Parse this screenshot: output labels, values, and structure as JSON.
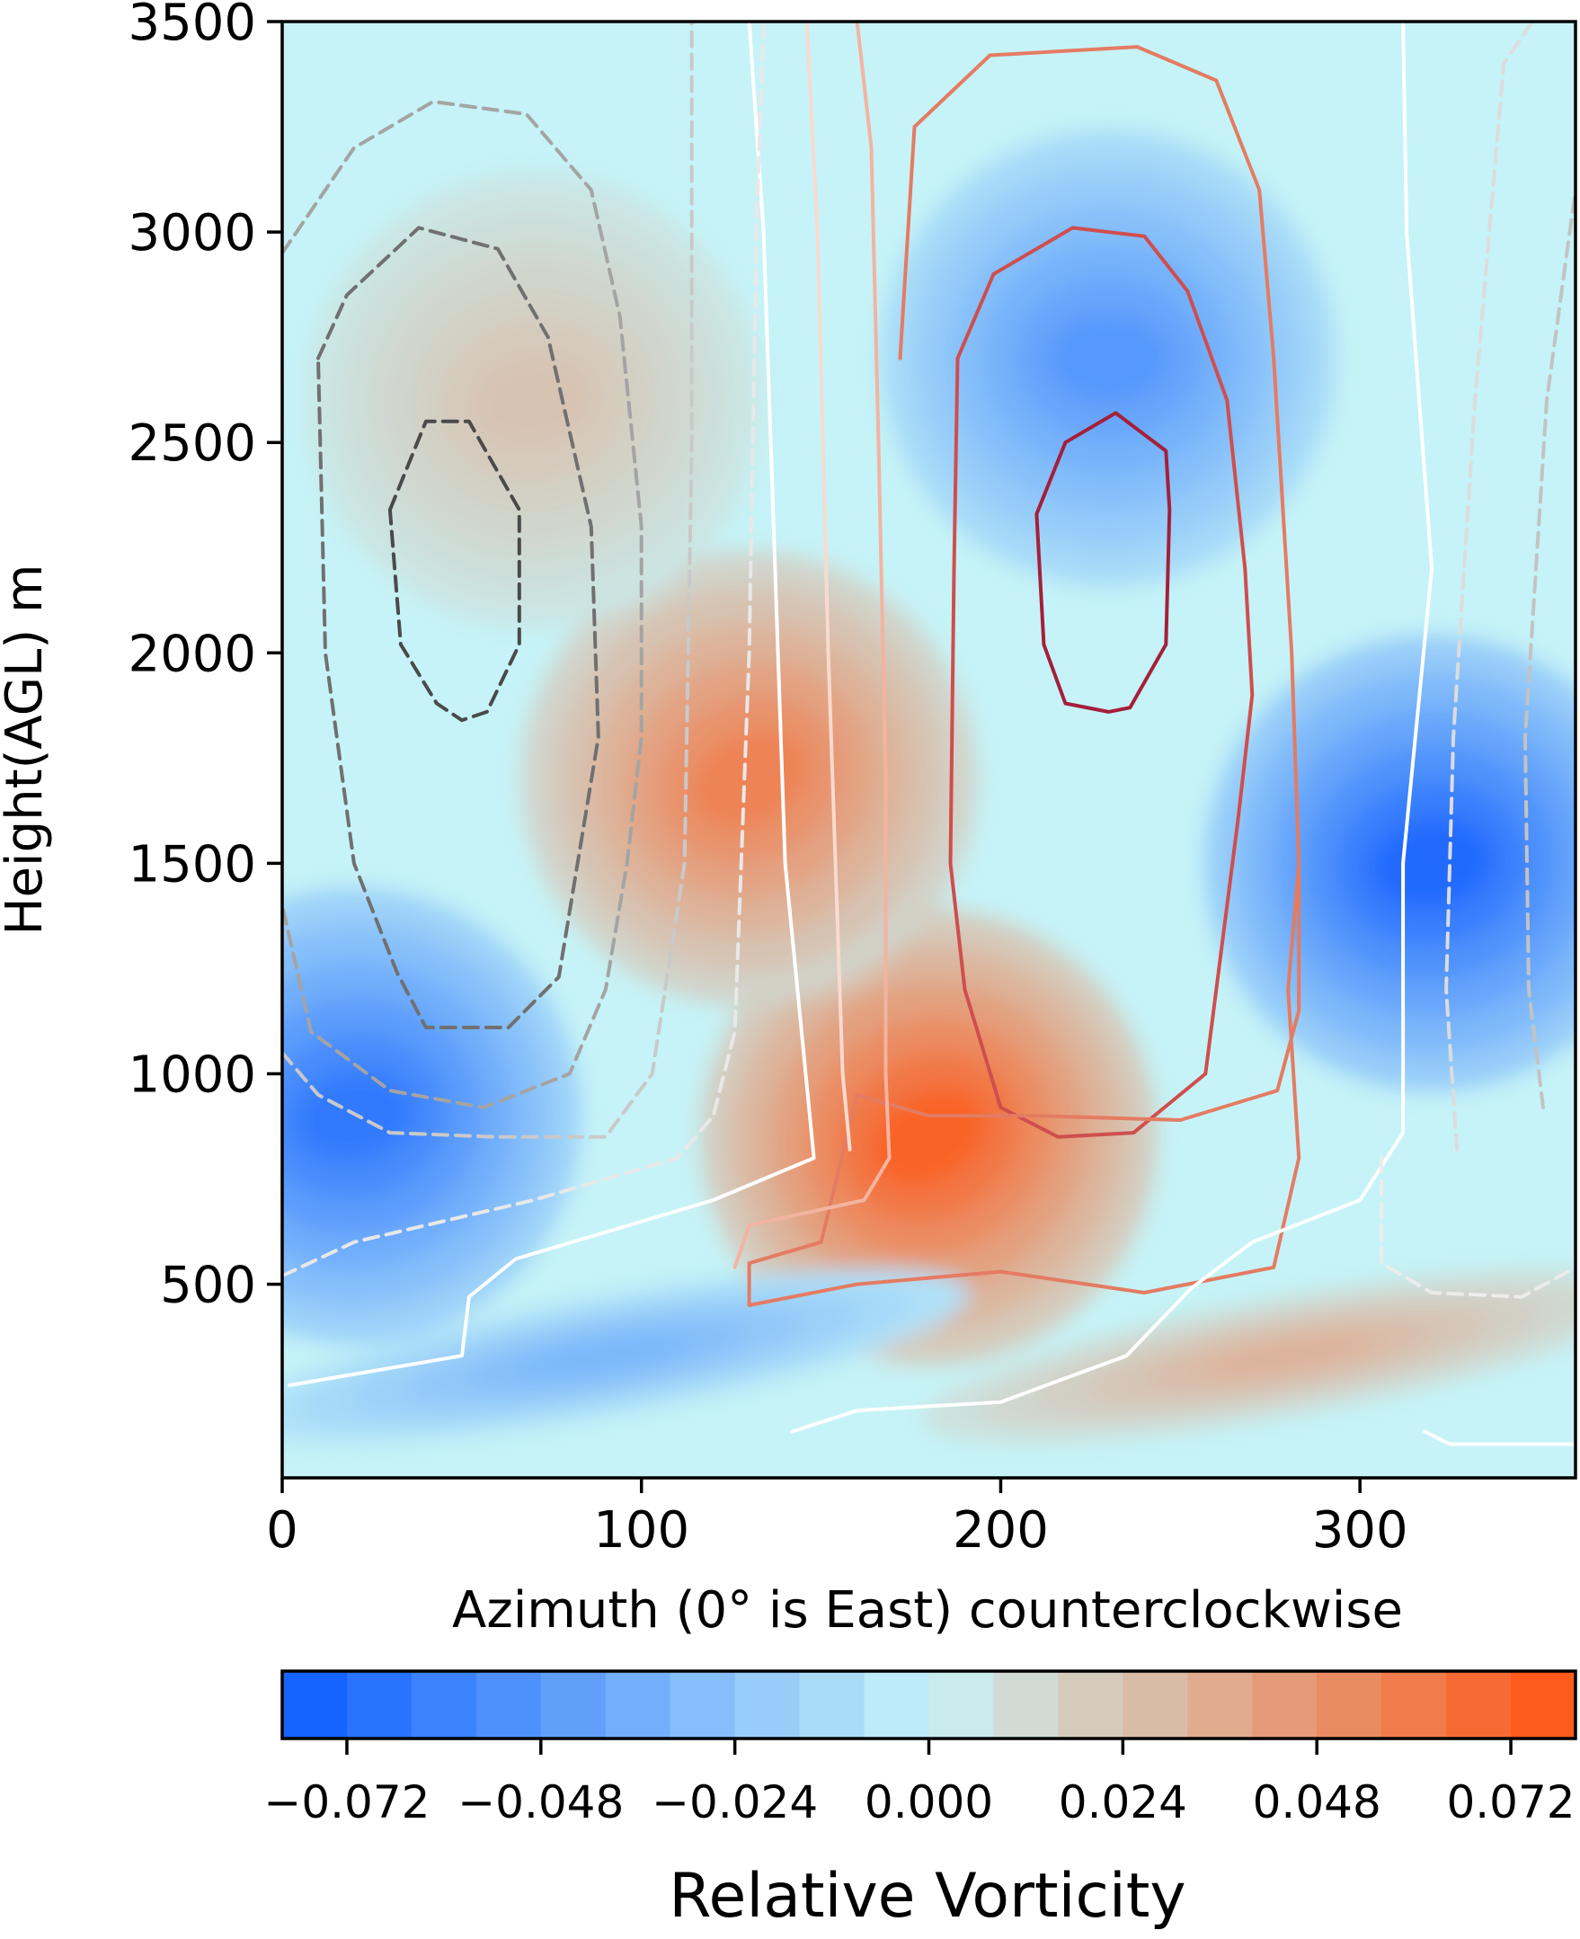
{
  "chart_data": {
    "type": "heatmap",
    "subtype": "filled contour with overlaid line contours",
    "xlabel": "Azimuth (0° is East) counterclockwise",
    "ylabel": "Height(AGL) m",
    "xlim": [
      0,
      360
    ],
    "ylim": [
      40,
      3500
    ],
    "xticks": [
      0,
      100,
      200,
      300
    ],
    "yticks": [
      500,
      1000,
      1500,
      2000,
      2500,
      3000,
      3500
    ],
    "grid": false,
    "colorbar": {
      "label": "Relative Vorticity",
      "orientation": "horizontal",
      "location": "bottom",
      "range": [
        -0.08,
        0.08
      ],
      "ticks": [
        -0.072,
        -0.048,
        -0.024,
        0.0,
        0.024,
        0.048,
        0.072
      ],
      "tick_labels": [
        "−0.072",
        "−0.048",
        "−0.024",
        "0.000",
        "0.024",
        "0.048",
        "0.072"
      ],
      "n_levels": 20,
      "colors": {
        "negative_end": "#0d5cff",
        "zero": "#c6f3f7",
        "positive_end": "#ff5310"
      }
    },
    "vorticity_features": [
      {
        "label": "positive maximum (tilted band)",
        "azimuth_deg": 180,
        "height_m": 850,
        "value": 0.072
      },
      {
        "label": "positive band, mid level",
        "azimuth_deg": 130,
        "height_m": 1700,
        "value": 0.056
      },
      {
        "label": "positive band, upper level",
        "azimuth_deg": 70,
        "height_m": 2600,
        "value": 0.024
      },
      {
        "label": "negative minimum, right",
        "azimuth_deg": 320,
        "height_m": 1500,
        "value": -0.072
      },
      {
        "label": "negative minimum, left",
        "azimuth_deg": 20,
        "height_m": 900,
        "value": -0.064
      },
      {
        "label": "negative region, upper middle",
        "azimuth_deg": 230,
        "height_m": 2700,
        "value": -0.048
      },
      {
        "label": "weak negative, low level",
        "azimuth_deg": 90,
        "height_m": 330,
        "value": -0.032
      },
      {
        "label": "weak positive, low level",
        "azimuth_deg": 280,
        "height_m": 330,
        "value": 0.032
      }
    ],
    "contour_series": [
      {
        "style": "solid",
        "color": "#a51f3a",
        "points": [
          [
            210,
            2330
          ],
          [
            218,
            2500
          ],
          [
            232,
            2570
          ],
          [
            246,
            2480
          ],
          [
            247,
            2340
          ],
          [
            246,
            2020
          ],
          [
            236,
            1870
          ],
          [
            230,
            1860
          ],
          [
            218,
            1880
          ],
          [
            212,
            2020
          ],
          [
            210,
            2330
          ]
        ]
      },
      {
        "style": "solid",
        "color": "#cf4e4e",
        "points": [
          [
            188,
            2700
          ],
          [
            198,
            2900
          ],
          [
            220,
            3010
          ],
          [
            240,
            2990
          ],
          [
            252,
            2860
          ],
          [
            263,
            2600
          ],
          [
            268,
            2200
          ],
          [
            270,
            1900
          ],
          [
            266,
            1600
          ],
          [
            257,
            1000
          ],
          [
            237,
            860
          ],
          [
            216,
            850
          ],
          [
            200,
            920
          ],
          [
            190,
            1200
          ],
          [
            186,
            1500
          ],
          [
            187,
            2200
          ],
          [
            188,
            2700
          ]
        ]
      },
      {
        "style": "solid",
        "color": "#e47b62",
        "points": [
          [
            172,
            2700
          ],
          [
            176,
            3250
          ],
          [
            197,
            3420
          ],
          [
            238,
            3440
          ],
          [
            260,
            3360
          ],
          [
            272,
            3100
          ],
          [
            276,
            2700
          ],
          [
            281,
            2000
          ],
          [
            283,
            1500
          ],
          [
            283,
            1150
          ],
          [
            277,
            960
          ],
          [
            250,
            890
          ],
          [
            210,
            900
          ],
          [
            180,
            900
          ],
          [
            160,
            950
          ],
          [
            150,
            600
          ],
          [
            130,
            550
          ],
          [
            130,
            450
          ],
          [
            160,
            500
          ],
          [
            200,
            530
          ],
          [
            240,
            480
          ],
          [
            276,
            540
          ],
          [
            283,
            800
          ],
          [
            280,
            1200
          ],
          [
            283,
            1500
          ]
        ]
      },
      {
        "style": "solid",
        "color": "#f2b4a0",
        "points": [
          [
            160,
            3500
          ],
          [
            164,
            3200
          ],
          [
            166,
            2500
          ],
          [
            168,
            1700
          ],
          [
            168,
            1000
          ],
          [
            169,
            800
          ],
          [
            162,
            700
          ],
          [
            130,
            640
          ],
          [
            126,
            540
          ]
        ]
      },
      {
        "style": "solid",
        "color": "#f9dad0",
        "points": [
          [
            146,
            3500
          ],
          [
            149,
            3000
          ],
          [
            152,
            2000
          ],
          [
            156,
            1000
          ],
          [
            158,
            820
          ]
        ]
      },
      {
        "style": "solid",
        "color": "#ffffff",
        "points": [
          [
            130,
            3500
          ],
          [
            134,
            3000
          ],
          [
            138,
            2000
          ],
          [
            140,
            1500
          ],
          [
            148,
            800
          ],
          [
            120,
            700
          ],
          [
            65,
            560
          ],
          [
            52,
            470
          ],
          [
            50,
            330
          ],
          [
            2,
            260
          ]
        ]
      },
      {
        "style": "solid",
        "color": "#ffffff",
        "points": [
          [
            142,
            150
          ],
          [
            160,
            200
          ],
          [
            200,
            220
          ],
          [
            235,
            330
          ],
          [
            253,
            490
          ],
          [
            270,
            600
          ],
          [
            300,
            700
          ],
          [
            312,
            860
          ],
          [
            312,
            1500
          ],
          [
            320,
            2200
          ],
          [
            313,
            3000
          ],
          [
            312,
            3500
          ]
        ]
      },
      {
        "style": "solid",
        "color": "#ffffff",
        "points": [
          [
            318,
            150
          ],
          [
            325,
            120
          ],
          [
            360,
            120
          ]
        ]
      },
      {
        "style": "dashed",
        "color": "#4a4a4a",
        "points": [
          [
            30,
            2340
          ],
          [
            40,
            2550
          ],
          [
            52,
            2550
          ],
          [
            66,
            2340
          ],
          [
            66,
            2020
          ],
          [
            57,
            1860
          ],
          [
            50,
            1840
          ],
          [
            43,
            1880
          ],
          [
            33,
            2020
          ],
          [
            30,
            2340
          ]
        ]
      },
      {
        "style": "dashed",
        "color": "#707070",
        "points": [
          [
            10,
            2700
          ],
          [
            18,
            2850
          ],
          [
            38,
            3010
          ],
          [
            60,
            2960
          ],
          [
            74,
            2750
          ],
          [
            86,
            2300
          ],
          [
            88,
            1800
          ],
          [
            77,
            1230
          ],
          [
            63,
            1110
          ],
          [
            40,
            1110
          ],
          [
            32,
            1240
          ],
          [
            20,
            1500
          ],
          [
            12,
            2000
          ],
          [
            10,
            2700
          ]
        ]
      },
      {
        "style": "dashed",
        "color": "#a4a4a4",
        "points": [
          [
            0,
            2950
          ],
          [
            20,
            3200
          ],
          [
            42,
            3310
          ],
          [
            68,
            3280
          ],
          [
            86,
            3100
          ],
          [
            94,
            2800
          ],
          [
            100,
            2300
          ],
          [
            100,
            1800
          ],
          [
            96,
            1500
          ],
          [
            90,
            1200
          ],
          [
            80,
            1000
          ],
          [
            56,
            920
          ],
          [
            30,
            960
          ],
          [
            8,
            1100
          ],
          [
            0,
            1400
          ]
        ]
      },
      {
        "style": "dashed",
        "color": "#c9c9c9",
        "points": [
          [
            0,
            1050
          ],
          [
            10,
            950
          ],
          [
            30,
            860
          ],
          [
            60,
            850
          ],
          [
            90,
            850
          ],
          [
            103,
            1000
          ],
          [
            112,
            1500
          ],
          [
            114,
            2500
          ],
          [
            114,
            3500
          ]
        ]
      },
      {
        "style": "dashed",
        "color": "#e8e8e8",
        "points": [
          [
            0,
            520
          ],
          [
            20,
            600
          ],
          [
            70,
            700
          ],
          [
            110,
            800
          ],
          [
            120,
            900
          ],
          [
            126,
            1100
          ],
          [
            130,
            2000
          ],
          [
            132,
            3000
          ],
          [
            134,
            3500
          ]
        ]
      },
      {
        "style": "dashed",
        "color": "#dcdcdc",
        "points": [
          [
            327,
            820
          ],
          [
            324,
            1200
          ],
          [
            326,
            1800
          ],
          [
            332,
            2600
          ],
          [
            340,
            3400
          ],
          [
            348,
            3500
          ]
        ]
      },
      {
        "style": "dashed",
        "color": "#c3c3c3",
        "points": [
          [
            351,
            920
          ],
          [
            347,
            1200
          ],
          [
            346,
            1800
          ],
          [
            352,
            2600
          ],
          [
            360,
            3100
          ]
        ]
      },
      {
        "style": "dashed",
        "color": "#ececec",
        "points": [
          [
            306,
            800
          ],
          [
            306,
            550
          ],
          [
            320,
            480
          ],
          [
            345,
            470
          ],
          [
            360,
            540
          ]
        ]
      }
    ]
  }
}
